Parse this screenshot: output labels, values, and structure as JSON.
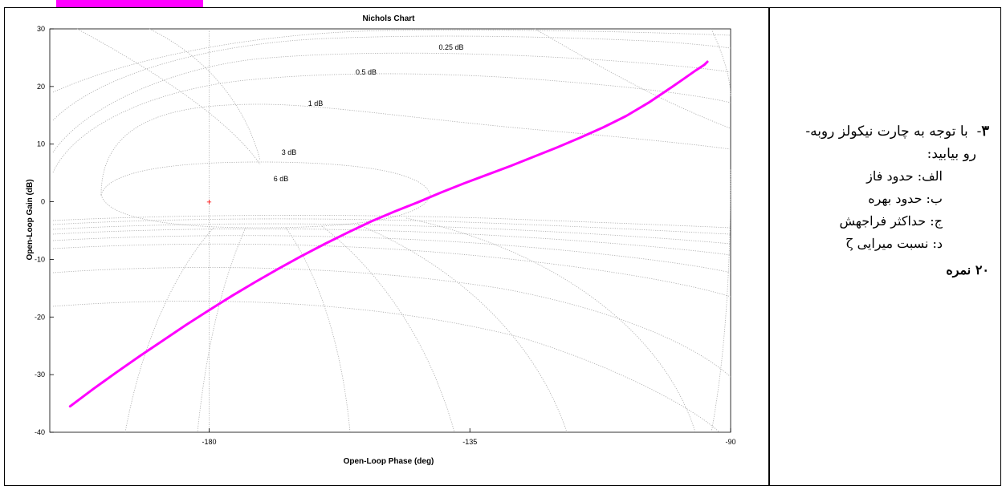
{
  "colors": {
    "curve": "#ff00ff",
    "grid": "#a9a9a9",
    "origin_marker": "#ff0000",
    "page_highlight": "#ff00ff"
  },
  "chart_data": {
    "type": "line",
    "title": "Nichols Chart",
    "xlabel": "Open-Loop Phase (deg)",
    "ylabel": "Open-Loop Gain (dB)",
    "xlim": [
      -207.5,
      -90
    ],
    "ylim": [
      -40,
      30
    ],
    "x_ticks": [
      -180,
      -135,
      -90
    ],
    "x_tick_labels": [
      "-180",
      "-135",
      "-90"
    ],
    "y_ticks": [
      30,
      20,
      10,
      0,
      -10,
      -20,
      -30,
      -40
    ],
    "y_tick_labels": [
      "30",
      "20",
      "10",
      "0",
      "-10",
      "-20",
      "-30",
      "-40"
    ],
    "grid": true,
    "grid_labels": [
      "0.25 dB",
      "0.5 dB",
      "1 dB",
      "3 dB",
      "6 dB"
    ],
    "origin_marker": {
      "phase": -180,
      "gain": 0,
      "symbol": "+"
    },
    "series": [
      {
        "x": [
          -204,
          -200,
          -196,
          -192,
          -188,
          -184,
          -180,
          -176,
          -172,
          -168,
          -164,
          -160,
          -156,
          -152,
          -148,
          -144,
          -140,
          -136,
          -132,
          -128,
          -124,
          -120,
          -116,
          -112,
          -108,
          -104,
          -100,
          -98,
          -96,
          -94.5,
          -94
        ],
        "y": [
          -35.5,
          -32.5,
          -29.6,
          -26.8,
          -24.1,
          -21.4,
          -18.8,
          -16.3,
          -13.9,
          -11.6,
          -9.4,
          -7.3,
          -5.3,
          -3.4,
          -1.7,
          -0.1,
          1.6,
          3.2,
          4.7,
          6.2,
          7.8,
          9.4,
          11.1,
          12.9,
          14.9,
          17.3,
          20.0,
          21.4,
          22.8,
          23.8,
          24.3
        ]
      }
    ]
  },
  "question": {
    "number": "۳",
    "dash": "-",
    "line1": "با توجه به چارت نیکولز روبه-",
    "line2": "رو بیابید:",
    "items": [
      "الف: حدود فاز",
      "ب: حدود بهره",
      "ج: حداکثر فراجهش",
      "د: نسبت میرایی ζ"
    ],
    "score": "۲۰ نمره"
  }
}
